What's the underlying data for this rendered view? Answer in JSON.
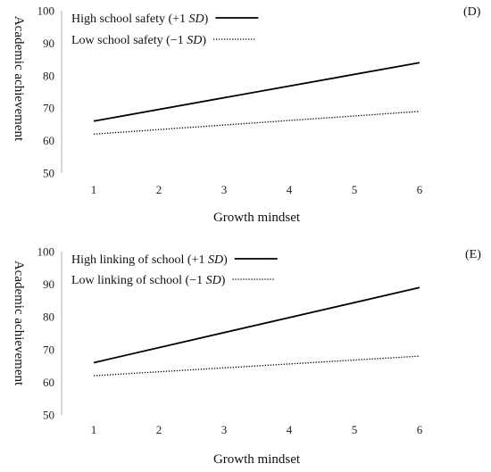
{
  "chart_data": [
    {
      "type": "line",
      "panel_label": "(D)",
      "xlabel": "Growth mindset",
      "ylabel": "Academic achievement",
      "x": [
        1,
        2,
        3,
        4,
        5,
        6
      ],
      "xlim": [
        1,
        6
      ],
      "ylim": [
        50,
        100
      ],
      "yticks": [
        50,
        60,
        70,
        80,
        90,
        100
      ],
      "grid": false,
      "legend_position": "top-left",
      "series": [
        {
          "name_main": "High school safety (+1 ",
          "name_italic": "SD",
          "name_tail": ")",
          "style": "solid",
          "color": "#000000",
          "points": [
            [
              1,
              66
            ],
            [
              6,
              84
            ]
          ]
        },
        {
          "name_main": "Low school safety (−1 ",
          "name_italic": "SD",
          "name_tail": ")",
          "style": "dotted",
          "color": "#000000",
          "points": [
            [
              1,
              62
            ],
            [
              6,
              69
            ]
          ]
        }
      ]
    },
    {
      "type": "line",
      "panel_label": "(E)",
      "xlabel": "Growth mindset",
      "ylabel": "Academic achievement",
      "x": [
        1,
        2,
        3,
        4,
        5,
        6
      ],
      "xlim": [
        1,
        6
      ],
      "ylim": [
        50,
        100
      ],
      "yticks": [
        50,
        60,
        70,
        80,
        90,
        100
      ],
      "grid": false,
      "legend_position": "top-left",
      "series": [
        {
          "name_main": "High linking of school (+1 ",
          "name_italic": "SD",
          "name_tail": ")",
          "style": "solid",
          "color": "#000000",
          "points": [
            [
              1,
              66
            ],
            [
              6,
              89
            ]
          ]
        },
        {
          "name_main": "Low linking of school (−1 ",
          "name_italic": "SD",
          "name_tail": ")",
          "style": "dotted",
          "color": "#000000",
          "points": [
            [
              1,
              62
            ],
            [
              6,
              68
            ]
          ]
        }
      ]
    }
  ]
}
